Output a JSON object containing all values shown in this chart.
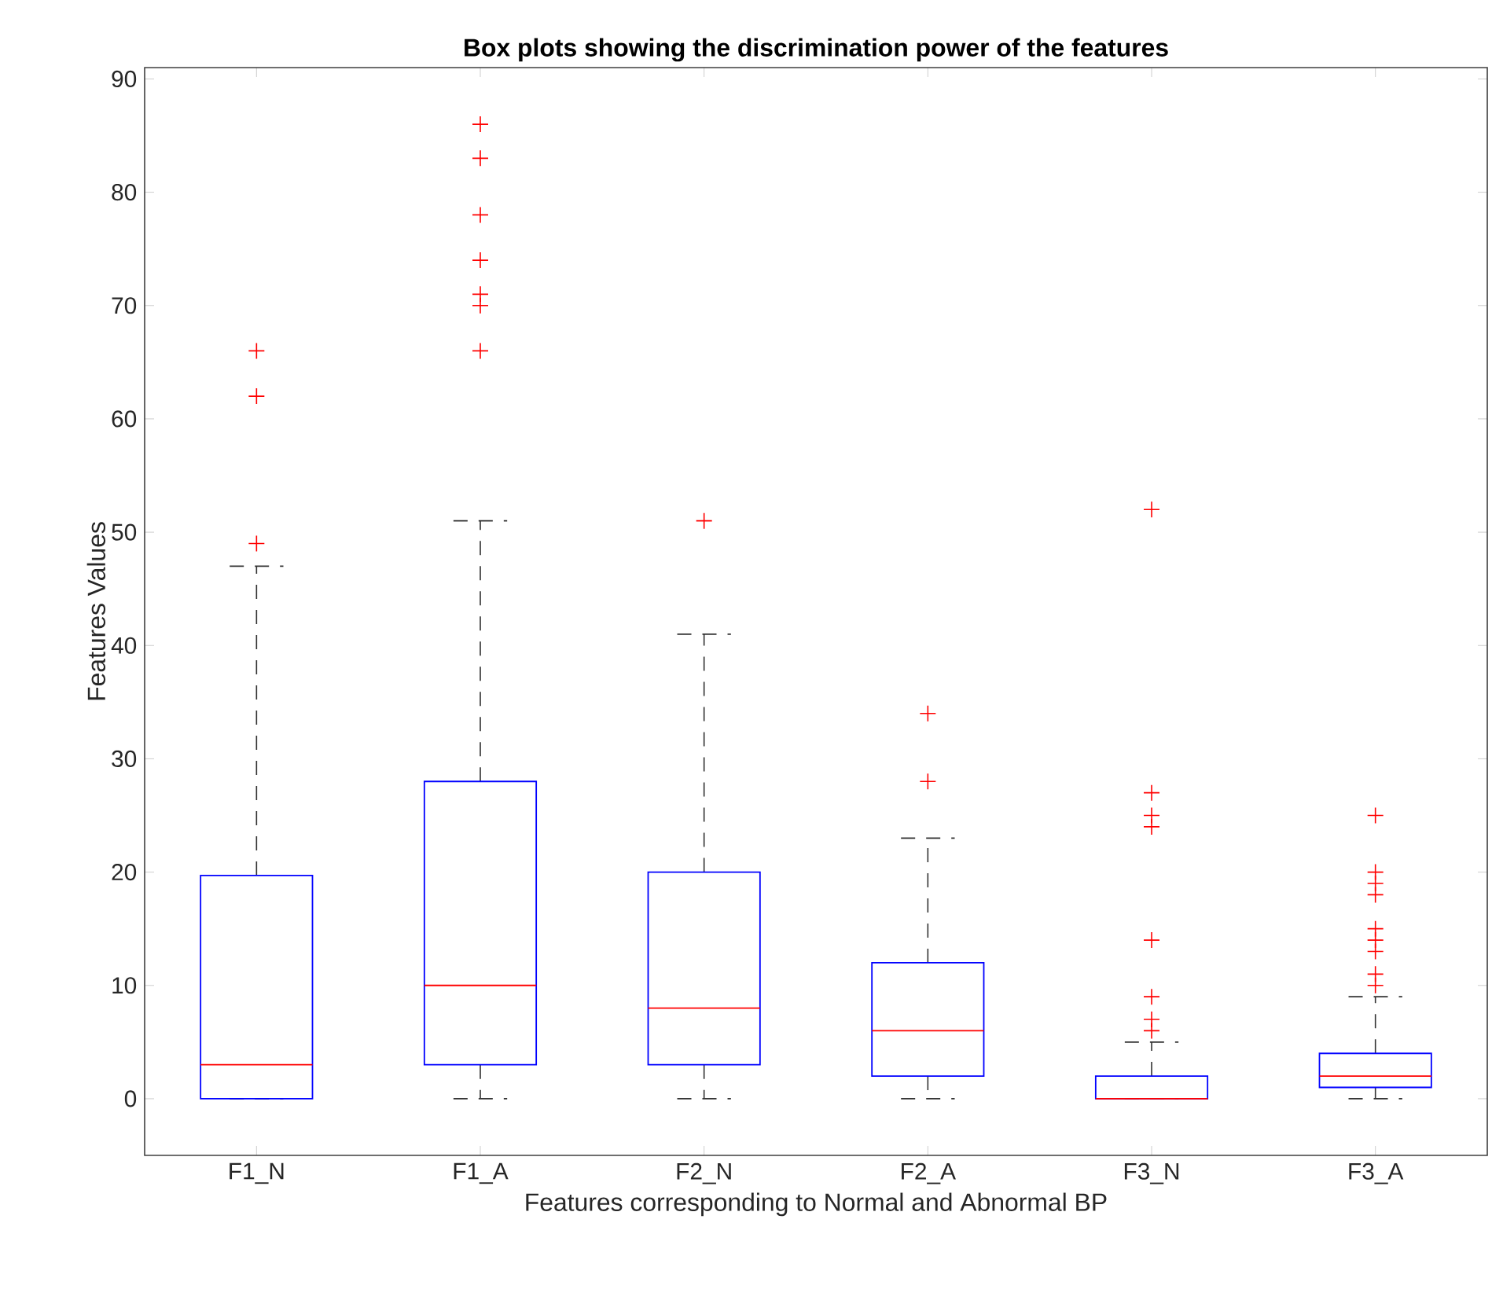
{
  "chart_data": {
    "type": "box",
    "title": "Box plots showing the discrimination power of the features",
    "xlabel": "Features corresponding to Normal and Abnormal BP",
    "ylabel": "Features Values",
    "categories": [
      "F1_N",
      "F1_A",
      "F2_N",
      "F2_A",
      "F3_N",
      "F3_A"
    ],
    "ylim": [
      -5,
      91
    ],
    "yticks": [
      0,
      10,
      20,
      30,
      40,
      50,
      60,
      70,
      80,
      90
    ],
    "grid": false,
    "marker": "cross",
    "line_style": "dashed",
    "series": [
      {
        "color": "#0000ff",
        "boxes": [
          {
            "low": 0,
            "q1": 0,
            "median": 3,
            "q3": 19.7,
            "high": 47,
            "outliers": [
              49,
              62,
              66
            ]
          },
          {
            "low": 0,
            "q1": 3,
            "median": 10,
            "q3": 28,
            "high": 51,
            "outliers": [
              66,
              70,
              71,
              74,
              78,
              83,
              86
            ]
          },
          {
            "low": 0,
            "q1": 3,
            "median": 8,
            "q3": 20,
            "high": 41,
            "outliers": [
              51
            ]
          },
          {
            "low": 0,
            "q1": 2,
            "median": 6,
            "q3": 12,
            "high": 23,
            "outliers": [
              28,
              34
            ]
          },
          {
            "low": 0,
            "q1": 0,
            "median": 0,
            "q3": 2,
            "high": 5,
            "outliers": [
              6,
              7,
              9,
              14,
              24,
              25,
              27,
              52
            ]
          },
          {
            "low": 0,
            "q1": 1,
            "median": 2,
            "q3": 4,
            "high": 9,
            "outliers": [
              10,
              11,
              13,
              14,
              15,
              18,
              19,
              20,
              25
            ]
          }
        ]
      }
    ]
  }
}
